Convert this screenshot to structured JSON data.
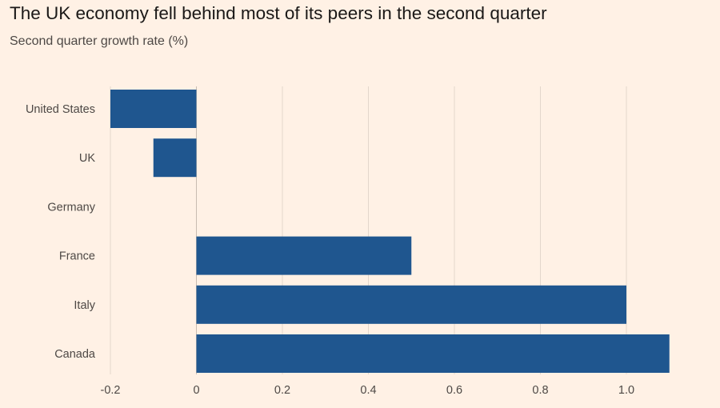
{
  "header": {
    "title": "The UK economy fell behind most of its peers in the second quarter",
    "subtitle": "Second quarter growth rate (%)"
  },
  "colors": {
    "background": "#fff1e5",
    "bar": "#1f568f",
    "gridline": "#e3d6cb"
  },
  "chart_data": {
    "type": "bar",
    "orientation": "horizontal",
    "title": "The UK economy fell behind most of its peers in the second quarter",
    "subtitle": "Second quarter growth rate (%)",
    "xlabel": "",
    "ylabel": "",
    "categories": [
      "United States",
      "UK",
      "Germany",
      "France",
      "Italy",
      "Canada"
    ],
    "values": [
      -0.2,
      -0.1,
      0.0,
      0.5,
      1.0,
      1.1
    ],
    "xlim": [
      -0.2,
      1.1
    ],
    "ticks": [
      -0.2,
      0,
      0.2,
      0.4,
      0.6,
      0.8,
      1.0
    ],
    "tick_labels": [
      "-0.2",
      "0",
      "0.2",
      "0.4",
      "0.6",
      "0.8",
      "1.0"
    ],
    "grid": true,
    "legend": "none"
  }
}
